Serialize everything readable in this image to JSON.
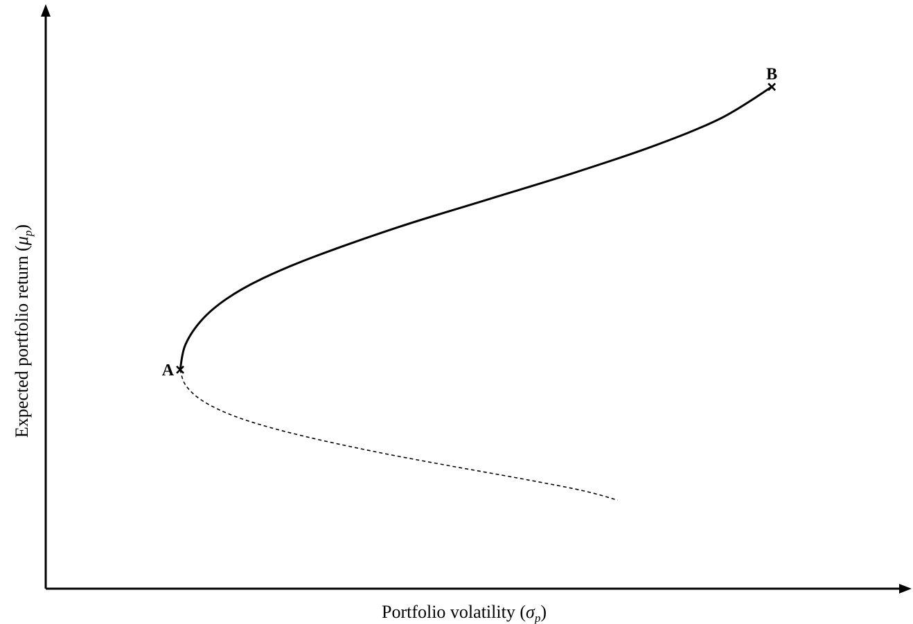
{
  "chart_data": {
    "type": "line",
    "title": "",
    "xlabel": {
      "text": "Portfolio volatility",
      "symbol": "σ",
      "subscript": "p"
    },
    "ylabel": {
      "text": "Expected portfolio return",
      "symbol": "μ",
      "subscript": "p"
    },
    "xlim": [
      0,
      100
    ],
    "ylim": [
      0,
      100
    ],
    "ticks": "none",
    "grid": false,
    "legend": "none",
    "points": [
      {
        "label": "A",
        "x": 15.7,
        "y": 38.1,
        "marker": "cross"
      },
      {
        "label": "B",
        "x": 84.8,
        "y": 87.3,
        "marker": "cross"
      }
    ],
    "series": [
      {
        "style": "solid",
        "role": "efficient",
        "x": [
          15.7,
          16.3,
          18.2,
          21.1,
          25.1,
          31.1,
          41.4,
          51.4,
          61.2,
          70.8,
          78.8,
          84.8
        ],
        "y": [
          38.1,
          42.4,
          46.7,
          50.4,
          53.8,
          57.6,
          63.0,
          67.6,
          72.1,
          76.9,
          81.8,
          87.3
        ]
      },
      {
        "style": "dashed",
        "role": "inefficient",
        "x": [
          15.7,
          16.3,
          18.0,
          20.9,
          24.9,
          30.8,
          38.9,
          47.1,
          55.3,
          62.6,
          66.8
        ],
        "y": [
          38.1,
          35.5,
          33.0,
          30.7,
          28.6,
          26.3,
          23.7,
          21.4,
          19.2,
          17.1,
          15.4
        ]
      }
    ]
  }
}
